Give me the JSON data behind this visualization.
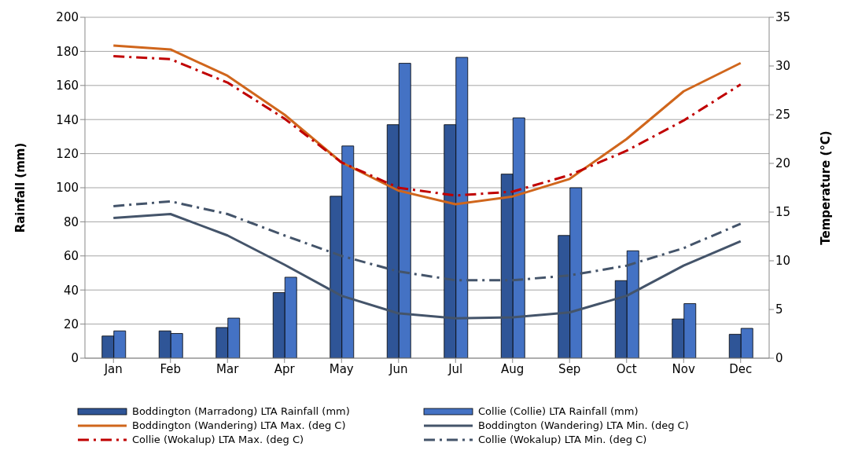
{
  "chart_data": {
    "type": "bar",
    "ylabel": "Rainfall (mm)",
    "y2label": "Temperature (°C)",
    "categories": [
      "Jan",
      "Feb",
      "Mar",
      "Apr",
      "May",
      "Jun",
      "Jul",
      "Aug",
      "Sep",
      "Oct",
      "Nov",
      "Dec"
    ],
    "series": [
      {
        "name": "Boddington (Marradong) LTA Rainfall (mm)",
        "color": "#2f5597",
        "values": [
          13,
          16,
          18,
          38.5,
          95,
          137,
          137,
          108,
          72,
          45.5,
          23,
          14
        ]
      },
      {
        "name": "Collie (Collie) LTA Rainfall (mm)",
        "color": "#4472c4",
        "values": [
          16,
          14.5,
          23.5,
          47.5,
          124.5,
          173,
          176.5,
          141,
          100,
          63,
          32,
          17.5
        ]
      },
      {
        "name": "Boddington (Wandering) LTA Max. (deg C)",
        "type": "line",
        "axis": "y2",
        "color": "#d0661c",
        "line_style": "solid",
        "values": [
          32.1,
          31.7,
          29.0,
          25.0,
          20.1,
          17.2,
          15.8,
          16.6,
          18.4,
          22.5,
          27.4,
          30.3
        ]
      },
      {
        "name": "Boddington (Wandering) LTA Min. (deg C)",
        "type": "line",
        "axis": "y2",
        "color": "#44546a",
        "line_style": "solid",
        "values": [
          14.4,
          14.8,
          12.6,
          9.6,
          6.4,
          4.6,
          4.1,
          4.2,
          4.7,
          6.4,
          9.5,
          12.0
        ]
      },
      {
        "name": "Collie (Wokalup) LTA Max. (deg C)",
        "type": "line",
        "axis": "y2",
        "color": "#c00000",
        "line_style": "dashed",
        "values": [
          31.0,
          30.7,
          28.3,
          24.6,
          20.1,
          17.5,
          16.7,
          17.1,
          18.8,
          21.3,
          24.4,
          28.1
        ]
      },
      {
        "name": "Collie (Wokalup) LTA Min. (deg C)",
        "type": "line",
        "axis": "y2",
        "color": "#44546a",
        "line_style": "dashed",
        "values": [
          15.6,
          16.1,
          14.8,
          12.6,
          10.5,
          8.9,
          8.0,
          8.0,
          8.5,
          9.5,
          11.3,
          13.8
        ]
      }
    ],
    "ylim": [
      0,
      200
    ],
    "yticks": [
      0,
      20,
      40,
      60,
      80,
      100,
      120,
      140,
      160,
      180,
      200
    ],
    "y2lim": [
      0,
      35
    ],
    "y2ticks": [
      0,
      5,
      10,
      15,
      20,
      25,
      30,
      35
    ],
    "grid": "y",
    "legend": "bottom",
    "marker": "none"
  }
}
